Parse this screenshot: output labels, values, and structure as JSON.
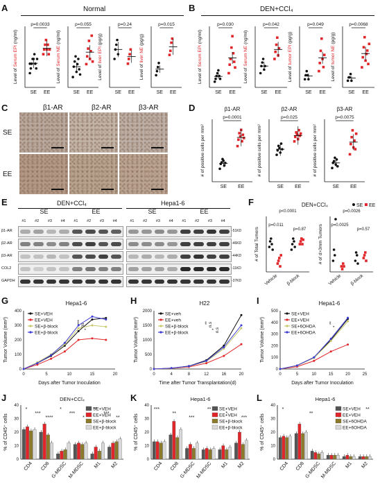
{
  "panel_labels": {
    "A": "A",
    "B": "B",
    "C": "C",
    "D": "D",
    "E": "E",
    "F": "F",
    "G": "G",
    "H": "H",
    "I": "I",
    "J": "J",
    "K": "K",
    "L": "L"
  },
  "headers": {
    "A": "Normal",
    "B": "DEN+CCl₄",
    "E_left": "DEN+CCl₄",
    "E_right": "Hepa1-6",
    "F": "DEN+CCl₄",
    "G": "Hepa1-6",
    "H": "H22",
    "I": "Hepa1-6",
    "J": "DEN+CCl₄",
    "K": "Hepa1-6",
    "L": "Hepa1-6"
  },
  "groups": {
    "se": "SE",
    "ee": "EE"
  },
  "panel_A": {
    "charts": [
      {
        "ylabel": "Level of Serum EPI (ng/ml)",
        "p": "p=0.0033",
        "se": [
          3,
          4,
          5,
          6,
          6,
          7,
          5,
          4,
          6,
          5
        ],
        "ee": [
          7,
          8,
          9,
          10,
          8,
          9,
          7,
          8
        ],
        "ymax": 12
      },
      {
        "ylabel": "Level of Serum NE (ng/ml)",
        "p": "p=0.055",
        "se": [
          4,
          8,
          10,
          12,
          6,
          9,
          11,
          7,
          5
        ],
        "ee": [
          9,
          12,
          15,
          18,
          11,
          14,
          20,
          10
        ],
        "ymax": 22
      },
      {
        "ylabel": "Level of liver EPI (pg/g)",
        "p": "p=0.24",
        "se": [
          6,
          8,
          9,
          10,
          7
        ],
        "ee": [
          5,
          6,
          7,
          8
        ],
        "ymax": 12
      },
      {
        "ylabel": "Level of liver NE (pg/g)",
        "p": "p=0.015",
        "se": [
          3,
          4,
          5,
          6
        ],
        "ee": [
          8,
          9,
          11,
          12
        ],
        "ymax": 14
      }
    ]
  },
  "panel_B": {
    "charts": [
      {
        "ylabel": "Level of Serum EPI (ng/ml)",
        "p": "p=0.030",
        "se": [
          2,
          3,
          4,
          5,
          6,
          4,
          3
        ],
        "ee": [
          5,
          8,
          10,
          14,
          18,
          12,
          9,
          7
        ],
        "ymax": 20
      },
      {
        "ylabel": "Level of Serum NE (ng/ml)",
        "p": "p=0.042",
        "se": [
          4,
          6,
          7,
          8,
          5,
          6
        ],
        "ee": [
          8,
          10,
          12,
          14,
          9,
          11
        ],
        "ymax": 16
      },
      {
        "ylabel": "Level of tumor EPI (pg/g)",
        "p": "p=0.049",
        "se": [
          2,
          3,
          4,
          3,
          2
        ],
        "ee": [
          4,
          6,
          9,
          12,
          7,
          5,
          8
        ],
        "ymax": 14
      },
      {
        "ylabel": "Level of tumor NE (pg/g)",
        "p": "p=0.0068",
        "se": [
          2,
          3,
          3,
          4,
          2
        ],
        "ee": [
          6,
          9,
          12,
          15,
          8,
          10,
          11,
          7,
          13
        ],
        "ymax": 17
      }
    ]
  },
  "panel_C": {
    "cols": [
      "β1-AR",
      "β2-AR",
      "β3-AR"
    ],
    "rows": [
      "SE",
      "EE"
    ]
  },
  "panel_D": {
    "ylabel": "# of positive cells per mm²",
    "charts": [
      {
        "title": "β1-AR",
        "p": "p=0.0001",
        "se": [
          40,
          55,
          60,
          70,
          65,
          50,
          58
        ],
        "ee": [
          110,
          130,
          150,
          140,
          160,
          125,
          145,
          135
        ],
        "ymax": 180
      },
      {
        "title": "β2-AR",
        "p": "p=0.025",
        "se": [
          120,
          140,
          160,
          150,
          130,
          170,
          145
        ],
        "ee": [
          180,
          200,
          220,
          210,
          190,
          230,
          205,
          215
        ],
        "ymax": 260
      },
      {
        "title": "β3-AR",
        "p": "p=0.0075",
        "se": [
          40,
          55,
          60,
          70,
          50,
          65,
          45
        ],
        "ee": [
          80,
          110,
          130,
          150,
          100,
          120,
          95,
          140
        ],
        "ymax": 170
      }
    ]
  },
  "panel_E": {
    "lane_labels": [
      "#1",
      "#2",
      "#3",
      "#4",
      "#1",
      "#2",
      "#3",
      "#4"
    ],
    "row_labels": [
      "β1-AR",
      "β2-AR",
      "β3-AR",
      "COL2",
      "GAPDH"
    ],
    "kd_labels": [
      "-51KD",
      "-46KD",
      "-44KD",
      "-11KD",
      "-37KD"
    ]
  },
  "panel_F": {
    "left": {
      "ylabel": "# of Total Tumors",
      "p_top": "p<0.0001",
      "p_left": "p=0.011",
      "p_right": "p=0.87",
      "xcats": [
        "Vehicle",
        "β-block"
      ]
    },
    "right": {
      "ylabel": "# of d>3mm Tumors",
      "p_top": "p=0.0026",
      "p_left": "p=0.0025",
      "p_right": "p=0.57",
      "xcats": [
        "Vehicle",
        "β-block"
      ]
    },
    "legend": {
      "se": "SE",
      "ee": "EE"
    }
  },
  "growth": {
    "G": {
      "xlabel": "Days after Tumor Inoculation",
      "ylabel": "Tumor Volume (mm³)",
      "series": [
        "SE+VEH",
        "EE+VEH",
        "SE+β-block",
        "EE+β-block"
      ],
      "x": [
        0,
        3,
        6,
        9,
        12,
        15,
        18
      ],
      "ymax": 400,
      "yticks": [
        "0",
        "100",
        "200",
        "300",
        "400"
      ],
      "xticks": [
        "0",
        "5",
        "10",
        "15",
        "20"
      ],
      "values": [
        [
          0,
          40,
          90,
          160,
          260,
          340,
          350
        ],
        [
          0,
          30,
          70,
          120,
          200,
          210,
          200
        ],
        [
          0,
          45,
          100,
          170,
          280,
          300,
          290
        ],
        [
          0,
          40,
          95,
          180,
          300,
          360,
          340
        ]
      ],
      "stars": [
        "***",
        "ns",
        "*"
      ]
    },
    "H": {
      "xlabel": "Time after Tumor Transplantation(d)",
      "ylabel": "Tumor Volume (mm³)",
      "series": [
        "SE+veh",
        "EE+veh",
        "SE+β-block",
        "EE+β-block"
      ],
      "x": [
        0,
        4,
        8,
        12,
        16,
        20
      ],
      "ymax": 2000,
      "yticks": [
        "0",
        "500",
        "1000",
        "1500",
        "2000"
      ],
      "xticks": [
        "0",
        "4",
        "8",
        "12",
        "16",
        "20"
      ],
      "values": [
        [
          0,
          30,
          100,
          300,
          800,
          1850
        ],
        [
          0,
          20,
          70,
          200,
          450,
          850
        ],
        [
          0,
          25,
          90,
          260,
          700,
          1400
        ],
        [
          0,
          30,
          95,
          280,
          750,
          1500
        ]
      ],
      "stars": [
        "**",
        "n.s",
        "*",
        "n.s"
      ]
    },
    "I": {
      "xlabel": "Days after Tumor Inoculation",
      "ylabel": "Tumor Volume (mm³)",
      "series": [
        "SE+VEH",
        "EE+VEH",
        "SE+6OHDA",
        "EE+6OHDA"
      ],
      "x": [
        0,
        5,
        10,
        15,
        20
      ],
      "ymax": 500,
      "yticks": [
        "0",
        "100",
        "200",
        "300",
        "400",
        "500"
      ],
      "xticks": [
        "0",
        "5",
        "10",
        "15",
        "20",
        "25"
      ],
      "values": [
        [
          0,
          30,
          100,
          250,
          430
        ],
        [
          0,
          20,
          70,
          150,
          210
        ],
        [
          0,
          28,
          95,
          240,
          410
        ],
        [
          0,
          30,
          100,
          260,
          440
        ]
      ],
      "stars": [
        "**",
        "*"
      ]
    }
  },
  "bars": {
    "ylabel": "% of CD45⁺ cells",
    "cats": [
      "CD4",
      "CD8",
      "G-MDSC",
      "M-MDSC",
      "M1",
      "M2"
    ],
    "J": {
      "series": [
        "SE+VEH",
        "EE+VEH",
        "SE+β-block",
        "EE+β-block"
      ],
      "ymax": 40,
      "yticks": [
        "0",
        "10",
        "20",
        "30",
        "40"
      ],
      "values": [
        [
          22,
          20,
          4,
          11,
          4,
          9
        ],
        [
          24,
          26,
          6,
          12,
          9,
          12
        ],
        [
          21,
          18,
          7,
          11,
          6,
          13
        ],
        [
          22,
          12,
          12,
          12,
          12,
          15
        ]
      ],
      "stars": [
        "*",
        "***",
        "****",
        "*",
        "***",
        "*",
        "**",
        "***",
        "**"
      ]
    },
    "K": {
      "series": [
        "SE+VEH",
        "EE+VEH",
        "SE+β-block",
        "EE+β-block"
      ],
      "ymax": 40,
      "yticks": [
        "0",
        "10",
        "20",
        "30",
        "40"
      ],
      "values": [
        [
          13,
          18,
          8,
          7,
          7,
          12
        ],
        [
          13,
          28,
          11,
          8,
          10,
          20
        ],
        [
          12,
          16,
          8,
          7,
          7,
          11
        ],
        [
          13,
          22,
          12,
          8,
          9,
          14
        ]
      ],
      "stars": [
        "***",
        "**",
        "***",
        "**",
        "*",
        "***"
      ]
    },
    "L": {
      "series": [
        "SE+VEH",
        "EE+VEH",
        "SE+6OHDA",
        "EE+6OHDA"
      ],
      "ymax": 40,
      "yticks": [
        "0",
        "10",
        "20",
        "30",
        "40"
      ],
      "values": [
        [
          16,
          19,
          6,
          3,
          2,
          2
        ],
        [
          17,
          26,
          5,
          3,
          3,
          2
        ],
        [
          16,
          19,
          4,
          3,
          2,
          2
        ],
        [
          17,
          20,
          5,
          3,
          2,
          2
        ]
      ],
      "stars": [
        "*",
        "**",
        "*",
        "**"
      ]
    }
  },
  "colors": {
    "se": "#111111",
    "ee": "#e0262a",
    "series3": "#c7c76a",
    "series4": "#3b3bd6",
    "bar1": "#555555",
    "bar2": "#e0262a",
    "bar3": "#8a7a2a",
    "bar4": "#d9d9d9"
  }
}
